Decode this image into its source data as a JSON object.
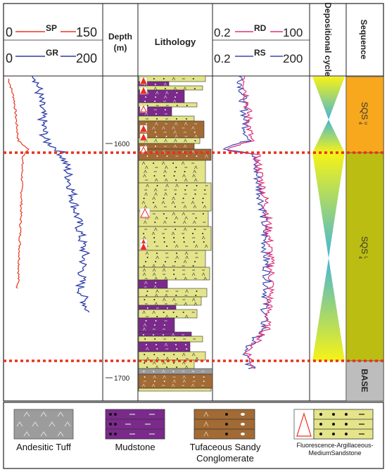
{
  "header": {
    "sp": {
      "label": "SP",
      "min": "0",
      "max": "150",
      "color": "#e8361e"
    },
    "gr": {
      "label": "GR",
      "min": "0",
      "max": "200",
      "color": "#2a3aa8"
    },
    "depth_label_1": "Depth",
    "depth_label_2": "(m)",
    "lithology_label": "Lithology",
    "rd": {
      "label": "RD",
      "min": "0.2",
      "max": "100",
      "color": "#e0307a"
    },
    "rs": {
      "label": "RS",
      "min": "0.2",
      "max": "200",
      "color": "#3a48b0"
    },
    "depositional_label": "Depositional cycle",
    "sequence_label": "Sequence"
  },
  "depth_ticks": [
    "1600",
    "1700"
  ],
  "sequences": [
    {
      "name": "SQS",
      "sup": "u",
      "sub": "4",
      "color": "#f7a81c"
    },
    {
      "name": "SQS",
      "sup": "L",
      "sub": "4",
      "color": "#bcbd12"
    },
    {
      "name": "BASE",
      "sup": "",
      "sub": "",
      "color": "#bdbdbd"
    }
  ],
  "boundary_color": "#e8301e",
  "colors": {
    "sandstone": "#e4e48a",
    "mudstone": "#7b2a8c",
    "conglomerate": "#a26a34",
    "tuff": "#9c9c9c"
  },
  "legend": [
    {
      "name": "Andesitic Tuff"
    },
    {
      "name": "Mudstone"
    },
    {
      "name": "Tufaceous Sandy Conglomerate"
    },
    {
      "name": "Fluorescence-Argillaceous-MediumSandstone"
    }
  ]
}
